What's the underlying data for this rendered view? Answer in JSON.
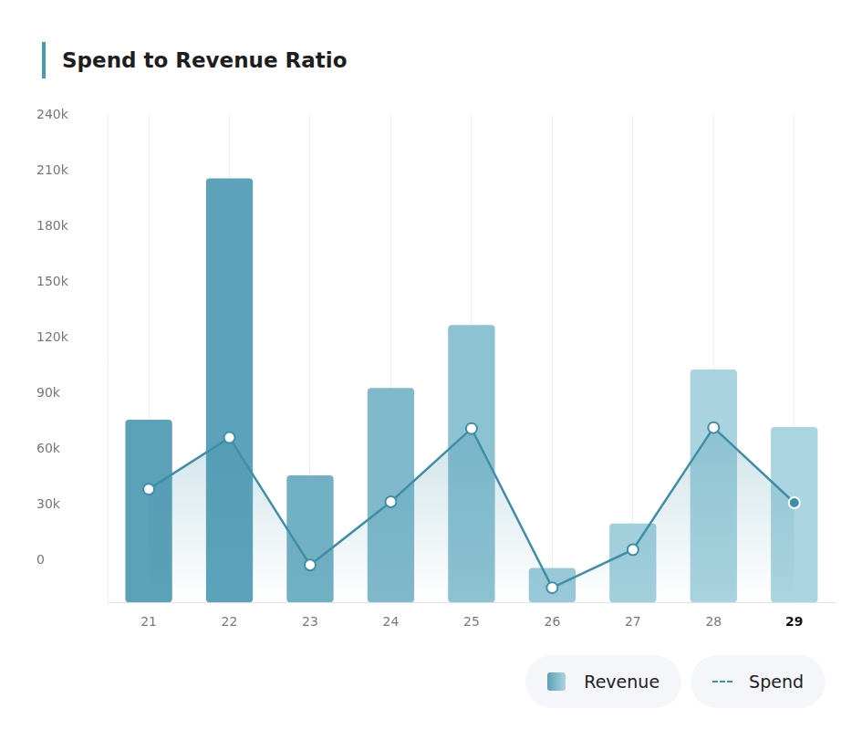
{
  "chart_data": {
    "type": "bar",
    "title": "Spend to Revenue Ratio",
    "categories": [
      "21",
      "22",
      "23",
      "24",
      "25",
      "26",
      "27",
      "28",
      "29"
    ],
    "series": [
      {
        "name": "Revenue",
        "type": "bar",
        "colors": [
          "#5ba1b8",
          "#5ca2ba",
          "#72b0c4",
          "#80b9cb",
          "#8cc2d2",
          "#99c9d8",
          "#a2cfdc",
          "#a8d3df",
          "#aad4e0"
        ],
        "values": [
          76000,
          206000,
          46000,
          93000,
          127000,
          -4000,
          20000,
          103000,
          72000
        ]
      },
      {
        "name": "Spend",
        "type": "line",
        "color": "#3f8ea7",
        "marker": "circle",
        "line_style": "solid",
        "values": [
          38500,
          66300,
          -2400,
          31700,
          71200,
          -14600,
          5900,
          71700,
          31200
        ]
      }
    ],
    "ylim": [
      -22500,
      240000
    ],
    "yticks": [
      0,
      {
        "value": 30000,
        "label": "30k"
      },
      {
        "value": 60000,
        "label": "60k"
      },
      {
        "value": 90000,
        "label": "90k"
      },
      {
        "value": 120000,
        "label": "120k"
      },
      {
        "value": 150000,
        "label": "150k"
      },
      {
        "value": 180000,
        "label": "180k"
      },
      {
        "value": 210000,
        "label": "210k"
      },
      {
        "value": 240000,
        "label": "240k"
      }
    ],
    "grid": true,
    "legend": "bottom-right"
  }
}
